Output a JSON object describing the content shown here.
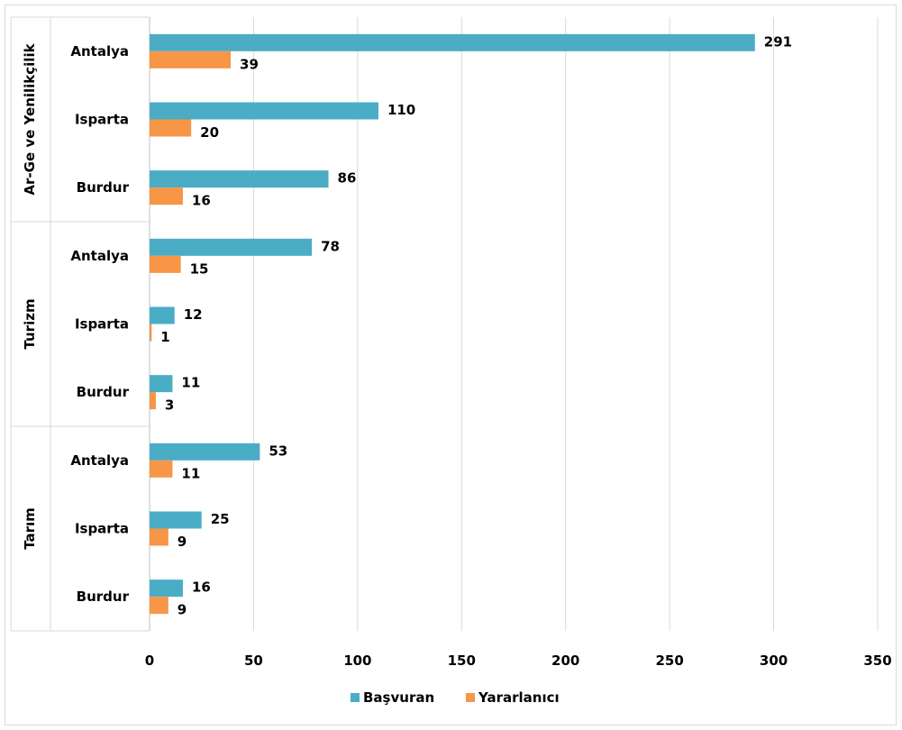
{
  "chart_data": {
    "type": "bar",
    "orientation": "horizontal",
    "groups": [
      {
        "label": "Ar-Ge ve Yenilikçilik",
        "categories": [
          "Antalya",
          "Isparta",
          "Burdur"
        ]
      },
      {
        "label": "Turizm",
        "categories": [
          "Antalya",
          "Isparta",
          "Burdur"
        ]
      },
      {
        "label": "Tarım",
        "categories": [
          "Antalya",
          "Isparta",
          "Burdur"
        ]
      }
    ],
    "series": [
      {
        "name": "Başvuran",
        "color": "#4bacc6",
        "values": [
          291,
          110,
          86,
          78,
          12,
          11,
          53,
          25,
          16
        ]
      },
      {
        "name": "Yararlanıcı",
        "color": "#f79646",
        "values": [
          39,
          20,
          16,
          15,
          1,
          3,
          11,
          9,
          9
        ]
      }
    ],
    "xlim": [
      0,
      350
    ],
    "xticks": [
      0,
      50,
      100,
      150,
      200,
      250,
      300,
      350
    ],
    "grid": true,
    "legend": "bottom",
    "data_labels": true
  }
}
